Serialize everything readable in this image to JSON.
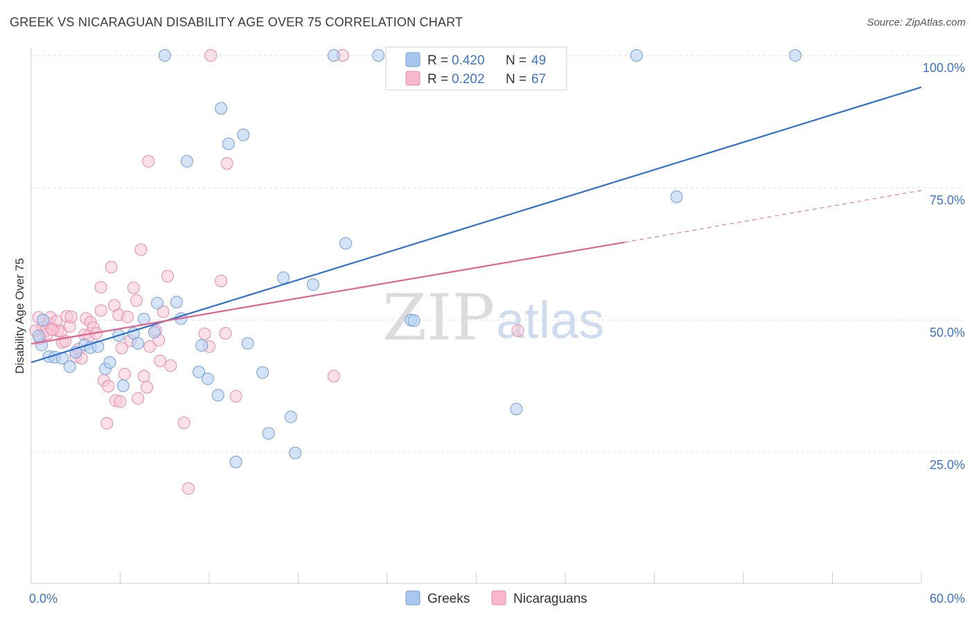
{
  "header": {
    "title": "GREEK VS NICARAGUAN DISABILITY AGE OVER 75 CORRELATION CHART",
    "source": "Source: ZipAtlas.com"
  },
  "watermark": {
    "part1": "ZIP",
    "part2": "atlas"
  },
  "legend": {
    "r_label": "R =",
    "n_label": "N =",
    "rows": [
      {
        "name": "Greeks",
        "r": "0.420",
        "n": "49",
        "color": "#a9c6ee"
      },
      {
        "name": "Nicaraguans",
        "r": "0.202",
        "n": "67",
        "color": "#f7b8cb"
      }
    ]
  },
  "colors": {
    "greeks_fill": "#b7d0f0",
    "greeks_stroke": "#6f9fdc",
    "greeks_line": "#2f6fcf",
    "nicaraguans_fill": "#f8c6d5",
    "nicaraguans_stroke": "#ea89a8",
    "nicaraguans_line": "#e2628e",
    "tick": "#3b74c9",
    "grid": "#dcdcdc"
  },
  "chart_data": {
    "type": "scatter",
    "title": "GREEK VS NICARAGUAN DISABILITY AGE OVER 75 CORRELATION CHART",
    "xlabel": "",
    "ylabel": "Disability Age Over 75",
    "xlim": [
      0,
      60
    ],
    "ylim": [
      0,
      102
    ],
    "x_tick_labels": [
      "0.0%",
      "60.0%"
    ],
    "y_ticks": [
      25,
      50,
      75,
      100
    ],
    "y_tick_labels": [
      "25.0%",
      "50.0%",
      "75.0%",
      "100.0%"
    ],
    "grid": true,
    "legend_position": "top-center",
    "series": [
      {
        "name": "Greeks",
        "r": 0.42,
        "n": 49,
        "trend": {
          "x0": 0,
          "y0": 42,
          "x1": 60,
          "y1": 94
        },
        "points": [
          [
            0.7,
            45.3
          ],
          [
            1.2,
            43.1
          ],
          [
            1.6,
            43.0
          ],
          [
            2.1,
            42.8
          ],
          [
            2.6,
            41.2
          ],
          [
            3.0,
            43.9
          ],
          [
            3.6,
            45.3
          ],
          [
            4.0,
            44.8
          ],
          [
            4.5,
            45.0
          ],
          [
            5.0,
            40.8
          ],
          [
            5.3,
            42.0
          ],
          [
            5.9,
            47.1
          ],
          [
            6.2,
            37.6
          ],
          [
            6.9,
            47.5
          ],
          [
            7.2,
            45.6
          ],
          [
            7.6,
            50.2
          ],
          [
            8.3,
            47.7
          ],
          [
            8.5,
            53.2
          ],
          [
            9.0,
            100.0
          ],
          [
            9.8,
            53.4
          ],
          [
            10.1,
            50.3
          ],
          [
            10.5,
            80.0
          ],
          [
            11.3,
            40.2
          ],
          [
            11.5,
            45.2
          ],
          [
            11.9,
            38.9
          ],
          [
            12.6,
            35.8
          ],
          [
            12.8,
            90.0
          ],
          [
            13.3,
            83.3
          ],
          [
            13.8,
            23.2
          ],
          [
            14.3,
            85.0
          ],
          [
            14.6,
            45.6
          ],
          [
            15.6,
            40.1
          ],
          [
            16.0,
            28.6
          ],
          [
            17.0,
            58.0
          ],
          [
            17.5,
            31.7
          ],
          [
            17.8,
            24.9
          ],
          [
            19.0,
            56.7
          ],
          [
            20.4,
            100.0
          ],
          [
            21.2,
            64.5
          ],
          [
            23.4,
            100.0
          ],
          [
            24.5,
            100.0
          ],
          [
            25.6,
            50.0
          ],
          [
            25.8,
            49.9
          ],
          [
            32.7,
            33.2
          ],
          [
            40.8,
            100.0
          ],
          [
            43.5,
            73.3
          ],
          [
            51.5,
            100.0
          ],
          [
            0.8,
            50.0
          ],
          [
            0.5,
            47.0
          ]
        ]
      },
      {
        "name": "Nicaraguans",
        "r": 0.202,
        "n": 67,
        "trend": {
          "x0": 0,
          "y0": 45.5,
          "x1": 40,
          "y1": 64.7
        },
        "trend_dashed": {
          "x0": 40,
          "y0": 64.7,
          "x1": 60,
          "y1": 74.5
        },
        "points": [
          [
            0.3,
            48.0
          ],
          [
            0.5,
            50.5
          ],
          [
            0.8,
            48.6
          ],
          [
            1.0,
            48.0
          ],
          [
            1.2,
            49.3
          ],
          [
            1.3,
            50.5
          ],
          [
            1.5,
            48.2
          ],
          [
            1.7,
            49.8
          ],
          [
            1.8,
            48.0
          ],
          [
            2.0,
            47.8
          ],
          [
            2.1,
            45.8
          ],
          [
            2.3,
            46.0
          ],
          [
            2.4,
            50.7
          ],
          [
            2.6,
            48.8
          ],
          [
            2.7,
            50.6
          ],
          [
            3.0,
            43.1
          ],
          [
            3.2,
            44.5
          ],
          [
            3.4,
            42.8
          ],
          [
            3.6,
            47.2
          ],
          [
            3.7,
            50.3
          ],
          [
            3.9,
            47.0
          ],
          [
            4.0,
            49.6
          ],
          [
            4.2,
            48.6
          ],
          [
            4.4,
            47.5
          ],
          [
            4.7,
            51.8
          ],
          [
            4.7,
            56.2
          ],
          [
            4.9,
            38.6
          ],
          [
            5.1,
            30.5
          ],
          [
            5.2,
            37.5
          ],
          [
            5.4,
            60.0
          ],
          [
            5.6,
            52.8
          ],
          [
            5.7,
            34.8
          ],
          [
            5.9,
            51.0
          ],
          [
            6.0,
            34.6
          ],
          [
            6.1,
            44.7
          ],
          [
            6.3,
            39.8
          ],
          [
            6.5,
            50.6
          ],
          [
            6.7,
            46.1
          ],
          [
            6.9,
            56.1
          ],
          [
            7.1,
            53.7
          ],
          [
            7.2,
            35.2
          ],
          [
            7.4,
            63.3
          ],
          [
            7.6,
            39.4
          ],
          [
            7.8,
            37.3
          ],
          [
            7.9,
            80.0
          ],
          [
            8.0,
            45.0
          ],
          [
            8.4,
            48.0
          ],
          [
            8.6,
            46.2
          ],
          [
            8.7,
            42.3
          ],
          [
            8.9,
            51.6
          ],
          [
            9.2,
            58.3
          ],
          [
            9.4,
            41.4
          ],
          [
            10.3,
            30.6
          ],
          [
            10.6,
            18.2
          ],
          [
            11.7,
            47.4
          ],
          [
            12.0,
            45.0
          ],
          [
            12.1,
            100.0
          ],
          [
            12.8,
            57.4
          ],
          [
            13.1,
            47.5
          ],
          [
            13.2,
            79.6
          ],
          [
            13.8,
            35.6
          ],
          [
            20.4,
            39.4
          ],
          [
            21.0,
            100.0
          ],
          [
            32.8,
            48.0
          ],
          [
            0.6,
            46.5
          ],
          [
            1.1,
            47.4
          ],
          [
            1.4,
            48.2
          ]
        ]
      }
    ]
  }
}
